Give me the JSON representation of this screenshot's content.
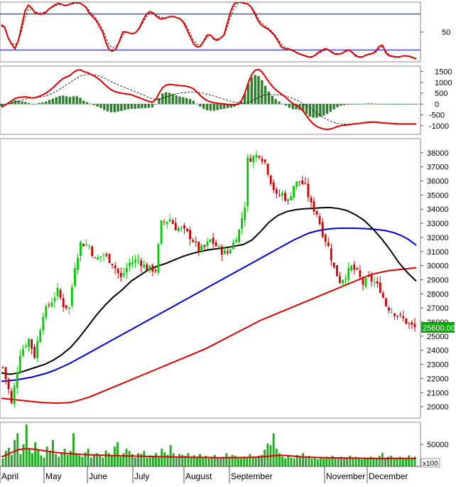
{
  "chart_data": {
    "type": "stock_chart",
    "colors": {
      "up": "#00cc00",
      "down": "#cc0000",
      "ma_short": "#000000",
      "ma_mid": "#0000cc",
      "ma_long": "#dd0000",
      "macd_line": "#dd0000",
      "signal_line": "#000000",
      "histogram": "#2f7f2f",
      "stoch_line": "#dd0000",
      "stoch_ref_line": "#0000cc",
      "volume_bar": "#22aa22",
      "volume_ma": "#dd0000",
      "price_tag_bg": "#00aa00",
      "price_tag_text": "#ffffff"
    },
    "months": [
      "April",
      "May",
      "June",
      "July",
      "August",
      "September",
      "November",
      "December"
    ],
    "oscillator": {
      "y_ticks": [
        50
      ],
      "ref_levels": [
        80,
        20
      ],
      "ylim": [
        0,
        100
      ],
      "line": [
        62,
        58,
        40,
        30,
        22,
        35,
        60,
        85,
        95,
        90,
        82,
        80,
        80,
        82,
        88,
        92,
        96,
        98,
        96,
        94,
        96,
        98,
        100,
        99,
        96,
        92,
        82,
        76,
        70,
        60,
        50,
        32,
        20,
        18,
        22,
        35,
        50,
        50,
        48,
        47,
        50,
        58,
        70,
        80,
        84,
        82,
        76,
        72,
        72,
        74,
        76,
        76,
        74,
        72,
        66,
        54,
        42,
        30,
        25,
        26,
        35,
        45,
        45,
        38,
        36,
        40,
        45,
        65,
        85,
        97,
        100,
        100,
        98,
        97,
        92,
        82,
        70,
        62,
        58,
        55,
        50,
        44,
        35,
        25,
        22,
        21,
        20,
        17,
        14,
        12,
        10,
        8,
        8,
        11,
        16,
        19,
        22,
        20,
        16,
        13,
        13,
        14,
        18,
        20,
        16,
        10,
        8,
        8,
        11,
        13,
        14,
        18,
        26,
        28,
        15,
        10,
        9,
        8,
        8,
        10,
        10,
        9,
        7,
        5
      ],
      "signal": [
        60,
        56,
        42,
        32,
        28,
        34,
        52,
        74,
        88,
        88,
        84,
        82,
        82,
        84,
        88,
        91,
        94,
        96,
        96,
        95,
        96,
        97,
        98,
        98,
        96,
        93,
        86,
        79,
        73,
        65,
        55,
        40,
        28,
        23,
        26,
        33,
        45,
        49,
        48,
        48,
        50,
        56,
        66,
        76,
        81,
        81,
        78,
        75,
        74,
        74,
        75,
        75,
        74,
        72,
        68,
        59,
        48,
        36,
        29,
        28,
        33,
        41,
        44,
        40,
        38,
        40,
        44,
        58,
        76,
        90,
        97,
        99,
        98,
        97,
        93,
        85,
        74,
        66,
        61,
        57,
        52,
        46,
        38,
        30,
        25,
        23,
        21,
        18,
        15,
        13,
        11,
        9,
        9,
        10,
        14,
        17,
        20,
        20,
        17,
        14,
        14,
        14,
        17,
        19,
        17,
        12,
        9,
        9,
        10,
        12,
        13,
        16,
        22,
        25,
        18,
        12,
        10,
        9,
        9,
        10,
        10,
        9,
        8,
        6
      ]
    },
    "macd": {
      "y_ticks": [
        1500,
        1000,
        500,
        0,
        -500,
        -1000
      ],
      "ylim": [
        -1400,
        1750
      ],
      "line": [
        -150,
        -60,
        50,
        150,
        260,
        300,
        320,
        330,
        310,
        280,
        300,
        360,
        420,
        500,
        620,
        750,
        900,
        1050,
        1180,
        1250,
        1320,
        1460,
        1560,
        1580,
        1500,
        1450,
        1380,
        1300,
        1200,
        1080,
        920,
        780,
        660,
        580,
        540,
        500,
        480,
        460,
        420,
        360,
        300,
        240,
        180,
        120,
        80,
        200,
        500,
        750,
        870,
        900,
        890,
        870,
        850,
        840,
        820,
        780,
        700,
        560,
        400,
        260,
        160,
        100,
        60,
        40,
        20,
        0,
        -20,
        -40,
        -30,
        0,
        150,
        500,
        980,
        1360,
        1560,
        1600,
        1480,
        1260,
        1020,
        820,
        660,
        540,
        420,
        300,
        150,
        20,
        -60,
        -160,
        -320,
        -540,
        -760,
        -920,
        -1040,
        -1100,
        -1150,
        -1170,
        -1150,
        -1100,
        -1040,
        -1000,
        -980,
        -960,
        -940,
        -910,
        -900,
        -880,
        -860,
        -840,
        -830,
        -830,
        -850,
        -870,
        -880,
        -890,
        -900,
        -910,
        -920,
        -920,
        -920,
        -920,
        -920,
        -920
      ],
      "signal": [
        -50,
        -30,
        0,
        40,
        90,
        140,
        190,
        230,
        260,
        280,
        290,
        310,
        340,
        380,
        430,
        500,
        580,
        680,
        790,
        890,
        990,
        1100,
        1200,
        1290,
        1340,
        1360,
        1360,
        1350,
        1320,
        1270,
        1200,
        1120,
        1040,
        960,
        890,
        820,
        760,
        700,
        640,
        580,
        510,
        440,
        370,
        300,
        240,
        210,
        220,
        260,
        320,
        380,
        430,
        470,
        500,
        520,
        540,
        550,
        550,
        540,
        520,
        490,
        450,
        410,
        370,
        320,
        270,
        220,
        170,
        130,
        90,
        60,
        40,
        30,
        60,
        130,
        220,
        310,
        380,
        420,
        440,
        440,
        430,
        420,
        400,
        370,
        320,
        260,
        190,
        110,
        20,
        -80,
        -180,
        -290,
        -410,
        -520,
        -620,
        -710,
        -790,
        -850,
        -890,
        -920,
        -930,
        -930,
        -920,
        -910,
        -900,
        -890,
        -880,
        -870,
        -860,
        -850,
        -850,
        -850,
        -860,
        -870,
        -880,
        -890,
        -900,
        -900,
        -900,
        -900,
        -900,
        -900
      ]
    },
    "price": {
      "y_ticks": [
        38000,
        37000,
        36000,
        35000,
        34000,
        33000,
        32000,
        31000,
        30000,
        29000,
        28000,
        27000,
        26000,
        25000,
        24000,
        23000,
        22000,
        21000,
        20000
      ],
      "ylim": [
        19200,
        39000
      ],
      "last_price_label": "25600.00",
      "last_price": 25600,
      "anchors": [
        [
          0,
          22800
        ],
        [
          2,
          21200
        ],
        [
          3,
          20200
        ],
        [
          6,
          23800
        ],
        [
          9,
          24800
        ],
        [
          11,
          23600
        ],
        [
          14,
          26600
        ],
        [
          17,
          27500
        ],
        [
          19,
          28200
        ],
        [
          21,
          27200
        ],
        [
          23,
          27000
        ],
        [
          25,
          30000
        ],
        [
          27,
          31600
        ],
        [
          30,
          31400
        ],
        [
          32,
          30400
        ],
        [
          35,
          30800
        ],
        [
          38,
          30200
        ],
        [
          41,
          29100
        ],
        [
          44,
          30200
        ],
        [
          47,
          30400
        ],
        [
          50,
          29800
        ],
        [
          53,
          29700
        ],
        [
          55,
          33000
        ],
        [
          58,
          33300
        ],
        [
          60,
          32700
        ],
        [
          62,
          32600
        ],
        [
          64,
          32300
        ],
        [
          66,
          31800
        ],
        [
          68,
          31100
        ],
        [
          70,
          31300
        ],
        [
          72,
          31800
        ],
        [
          74,
          31400
        ],
        [
          76,
          31000
        ],
        [
          78,
          30900
        ],
        [
          80,
          31600
        ],
        [
          82,
          32500
        ],
        [
          84,
          34300
        ],
        [
          85,
          37500
        ],
        [
          87,
          37700
        ],
        [
          89,
          37900
        ],
        [
          91,
          37300
        ],
        [
          93,
          36000
        ],
        [
          95,
          34900
        ],
        [
          97,
          35100
        ],
        [
          99,
          34500
        ],
        [
          101,
          35700
        ],
        [
          103,
          36000
        ],
        [
          105,
          35600
        ],
        [
          107,
          34300
        ],
        [
          109,
          33700
        ],
        [
          111,
          32300
        ],
        [
          113,
          31300
        ],
        [
          115,
          29800
        ],
        [
          117,
          28900
        ],
        [
          119,
          29300
        ],
        [
          121,
          29900
        ],
        [
          123,
          29500
        ],
        [
          125,
          28700
        ],
        [
          127,
          29100
        ],
        [
          129,
          28800
        ],
        [
          131,
          28300
        ],
        [
          133,
          27200
        ],
        [
          135,
          26800
        ],
        [
          137,
          26500
        ],
        [
          139,
          26200
        ],
        [
          141,
          25800
        ],
        [
          143,
          25600
        ]
      ],
      "ma_short": [
        22400,
        22300,
        22400,
        22600,
        22800,
        23000,
        23300,
        23700,
        24200,
        24900,
        25700,
        26500,
        27200,
        27800,
        28300,
        28900,
        29300,
        29700,
        29950,
        30150,
        30400,
        30650,
        30850,
        31000,
        31120,
        31200,
        31280,
        31380,
        31500,
        31820,
        32420,
        33100,
        33560,
        33820,
        33960,
        34020,
        34060,
        34100,
        34120,
        34050,
        33900,
        33600,
        33200,
        32600,
        31900,
        31100,
        30200,
        29500,
        28900
      ],
      "ma_mid": [
        21800,
        21850,
        21900,
        22000,
        22100,
        22250,
        22400,
        22600,
        22850,
        23100,
        23400,
        23700,
        24000,
        24300,
        24600,
        24900,
        25200,
        25500,
        25800,
        26100,
        26400,
        26700,
        27000,
        27300,
        27600,
        27900,
        28200,
        28500,
        28800,
        29100,
        29400,
        29700,
        30000,
        30300,
        30600,
        30900,
        31200,
        31500,
        31800,
        32050,
        32300,
        32450,
        32550,
        32620,
        32650,
        32650,
        32650,
        32630,
        32600,
        32550,
        32480,
        32350,
        32150,
        31850,
        31450
      ],
      "ma_long": [
        20600,
        20550,
        20500,
        20450,
        20400,
        20350,
        20300,
        20280,
        20260,
        20270,
        20300,
        20400,
        20550,
        20700,
        20900,
        21100,
        21300,
        21500,
        21700,
        21900,
        22100,
        22300,
        22500,
        22700,
        22900,
        23100,
        23300,
        23500,
        23700,
        23900,
        24100,
        24350,
        24600,
        24850,
        25100,
        25350,
        25600,
        25850,
        26100,
        26300,
        26500,
        26700,
        26900,
        27100,
        27300,
        27500,
        27700,
        27900,
        28100,
        28300,
        28500,
        28700,
        28900,
        29100,
        29300,
        29450,
        29550,
        29650,
        29700,
        29750,
        29800,
        29850
      ]
    },
    "volume": {
      "y_ticks": [
        50000
      ],
      "ylim": [
        0,
        100000
      ],
      "unit_label": "x100",
      "values": [
        18000,
        35000,
        42000,
        26000,
        60000,
        75000,
        28000,
        50000,
        95000,
        40000,
        30000,
        55000,
        38000,
        25000,
        20000,
        45000,
        33000,
        60000,
        28000,
        22000,
        30000,
        40000,
        26000,
        35000,
        75000,
        30000,
        25000,
        22000,
        32000,
        40000,
        20000,
        28000,
        30000,
        24000,
        20000,
        36000,
        30000,
        25000,
        45000,
        55000,
        22000,
        30000,
        40000,
        35000,
        28000,
        20000,
        30000,
        28000,
        35000,
        20000,
        25000,
        22000,
        30000,
        20000,
        40000,
        32000,
        26000,
        48000,
        30000,
        22000,
        28000,
        26000,
        24000,
        30000,
        20000,
        25000,
        22000,
        28000,
        20000,
        24000,
        18000,
        22000,
        26000,
        20000,
        18000,
        22000,
        30000,
        22000,
        26000,
        24000,
        20000,
        18000,
        22000,
        20000,
        28000,
        22000,
        20000,
        24000,
        26000,
        38000,
        52000,
        48000,
        75000,
        40000,
        30000,
        22000,
        18000,
        25000,
        20000,
        18000,
        26000,
        22000,
        30000,
        20000,
        24000,
        18000,
        22000,
        16000,
        20000,
        18000,
        22000,
        20000,
        24000,
        18000,
        20000,
        22000,
        18000,
        20000,
        24000,
        18000,
        22000,
        20000,
        16000,
        20000,
        18000,
        22000,
        20000,
        18000,
        24000,
        30000,
        20000,
        22000,
        24000,
        18000,
        20000,
        22000,
        20000,
        18000,
        25000,
        20000,
        22000
      ],
      "ma": [
        22000,
        24000,
        27000,
        30000,
        33000,
        36000,
        38000,
        39000,
        40000,
        40000,
        39500,
        39000,
        38000,
        37000,
        36000,
        35000,
        34000,
        33000,
        32000,
        31000,
        30500,
        30000,
        29500,
        29000,
        28500,
        28000,
        27500,
        27000,
        26800,
        26500,
        26300,
        26000,
        25800,
        25500,
        25300,
        25000,
        24800,
        24600,
        24400,
        24200,
        24000,
        23800,
        23700,
        23600,
        23500,
        23400,
        23300,
        23200,
        23000,
        22800,
        22600,
        22500,
        22300,
        22200,
        22000,
        21800,
        21600,
        21500,
        21400,
        21300,
        21200,
        21100,
        21000,
        20900,
        20800,
        20700,
        20600,
        20500,
        20400,
        20300,
        20200,
        20100,
        20000,
        19900,
        19800,
        19800,
        19800,
        19800,
        19900,
        20000,
        20100,
        20200,
        20300,
        20400,
        20500,
        20700,
        21000,
        21500,
        22000,
        22500,
        23000,
        23500,
        24000,
        24500,
        25000,
        25000,
        24500,
        24000,
        23500,
        23000,
        22500,
        22000,
        21500,
        21000,
        20800,
        20600,
        20400,
        20200,
        20000,
        19800,
        19600,
        19500,
        19400,
        19300,
        19200,
        19100,
        19000,
        18900,
        18800,
        18700,
        18600,
        18500,
        18400,
        18300,
        18200,
        18100,
        18000,
        17900,
        17800,
        17800,
        17800,
        17900,
        18000,
        18000,
        18000,
        18000,
        18000,
        18000,
        18000,
        18000,
        18000
      ]
    }
  }
}
